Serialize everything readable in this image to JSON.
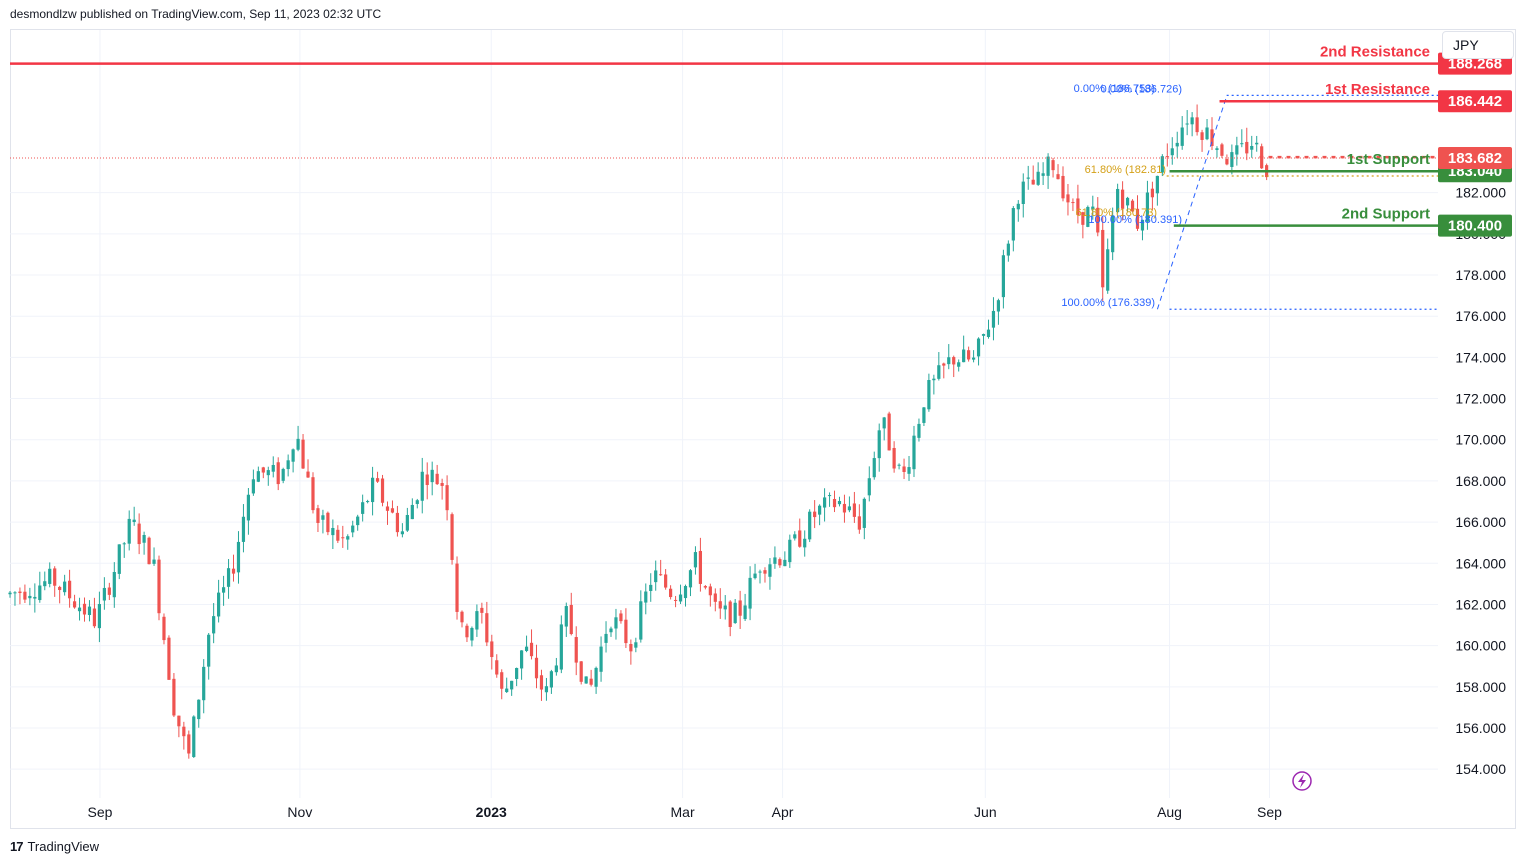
{
  "header": {
    "publisher_text": "desmondlzw published on TradingView.com, Sep 11, 2023 02:32 UTC"
  },
  "currency": "JPY",
  "footer": {
    "brand": "TradingView",
    "logo_mark": "17"
  },
  "colors": {
    "up": "#26a69a",
    "down": "#ef5350",
    "resistance": "#f23645",
    "support": "#388e3c",
    "fib_blue": "#2962ff",
    "fib_gold": "#d4a017",
    "grid": "#f0f3fa"
  },
  "chart_data": {
    "type": "candlestick",
    "title": "",
    "ylim": [
      152.6,
      189.9
    ],
    "y_ticks": [
      "154.000",
      "156.000",
      "158.000",
      "160.000",
      "162.000",
      "164.000",
      "166.000",
      "168.000",
      "170.000",
      "172.000",
      "174.000",
      "176.000",
      "178.000",
      "180.000",
      "182.000"
    ],
    "x_ticks": [
      {
        "label": "Sep",
        "t": 0.063
      },
      {
        "label": "Nov",
        "t": 0.203
      },
      {
        "label": "2023",
        "t": 0.337,
        "bold": true
      },
      {
        "label": "Mar",
        "t": 0.471
      },
      {
        "label": "Apr",
        "t": 0.541
      },
      {
        "label": "Jun",
        "t": 0.683
      },
      {
        "label": "Aug",
        "t": 0.812
      },
      {
        "label": "Sep",
        "t": 0.882
      }
    ],
    "series": [
      {
        "type": "ohlc",
        "values": []
      }
    ],
    "levels": [
      {
        "label": "2nd Resistance",
        "value": 188.268,
        "tag": "188.268",
        "kind": "resistance",
        "start": 0.0
      },
      {
        "label": "1st Resistance",
        "value": 186.442,
        "tag": "186.442",
        "kind": "resistance",
        "start": 0.847
      },
      {
        "label": "1st Support",
        "value": 183.04,
        "tag": "183.040",
        "kind": "support",
        "start": 0.812
      },
      {
        "label": "2nd Support",
        "value": 180.4,
        "tag": "180.400",
        "kind": "support",
        "start": 0.815
      }
    ],
    "current_price": {
      "value": 183.682,
      "tag": "183.682"
    },
    "fib_labels": [
      {
        "text": "0.00% (186.753)",
        "value": 186.753,
        "kind": "blue"
      },
      {
        "text": "0.00% (186.726)",
        "value": 186.726,
        "kind": "blue"
      },
      {
        "text": "61.80% (182.81)",
        "value": 182.81,
        "kind": "gold"
      },
      {
        "text": "61.80% (180.73)",
        "value": 180.73,
        "kind": "gold"
      },
      {
        "text": "100.00% (180.391)",
        "value": 180.391,
        "kind": "blue"
      },
      {
        "text": "100.00% (176.339)",
        "value": 176.339,
        "kind": "blue"
      }
    ]
  }
}
